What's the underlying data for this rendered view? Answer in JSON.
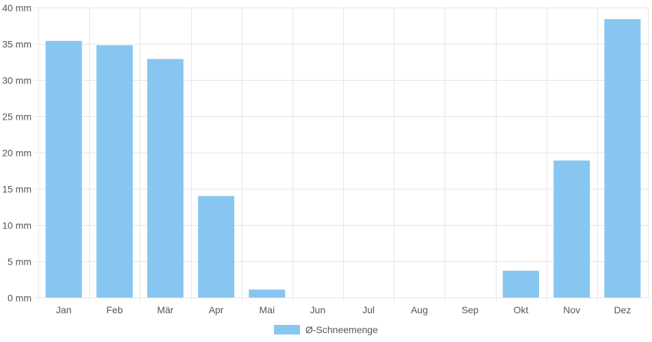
{
  "chart_data": {
    "type": "bar",
    "categories": [
      "Jan",
      "Feb",
      "Mär",
      "Apr",
      "Mai",
      "Jun",
      "Jul",
      "Aug",
      "Sep",
      "Okt",
      "Nov",
      "Dez"
    ],
    "series": [
      {
        "name": "Ø-Schneemenge",
        "values": [
          35.4,
          34.8,
          32.9,
          14,
          1.1,
          0,
          0,
          0,
          0,
          3.7,
          18.9,
          38.4
        ],
        "color": "#87c6f1"
      }
    ],
    "y_ticks": [
      "0 mm",
      "5 mm",
      "10 mm",
      "15 mm",
      "20 mm",
      "25 mm",
      "30 mm",
      "35 mm",
      "40 mm"
    ],
    "ylim": [
      0,
      40
    ],
    "y_unit": "mm",
    "grid": true,
    "legend_position": "bottom",
    "grid_color": "#e5e5e5"
  }
}
